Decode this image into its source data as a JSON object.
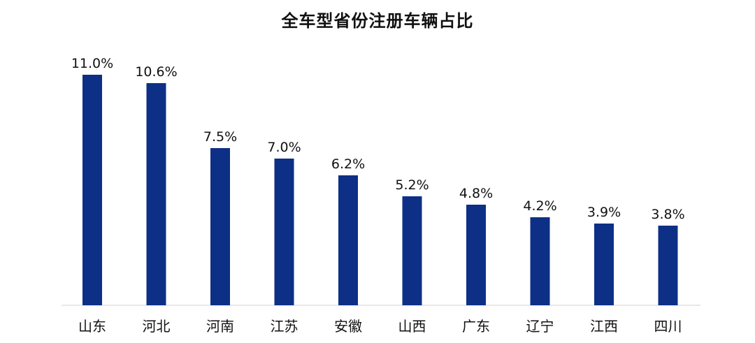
{
  "chart_data": {
    "type": "bar",
    "title": "全车型省份注册车辆占比",
    "xlabel": "",
    "ylabel": "",
    "unit": "%",
    "categories": [
      "山东",
      "河北",
      "河南",
      "江苏",
      "安徽",
      "山西",
      "广东",
      "辽宁",
      "江西",
      "四川"
    ],
    "values": [
      11.0,
      10.6,
      7.5,
      7.0,
      6.2,
      5.2,
      4.8,
      4.2,
      3.9,
      3.8
    ],
    "data_labels": [
      "11.0%",
      "10.6%",
      "7.5%",
      "7.0%",
      "6.2%",
      "5.2%",
      "4.8%",
      "4.2%",
      "3.9%",
      "3.8%"
    ],
    "ylim": [
      0,
      11.0
    ],
    "grid": false,
    "legend": "none",
    "colors": {
      "bar": "#0d2f86",
      "axis": "#d9d9d9",
      "text": "#111111"
    }
  }
}
